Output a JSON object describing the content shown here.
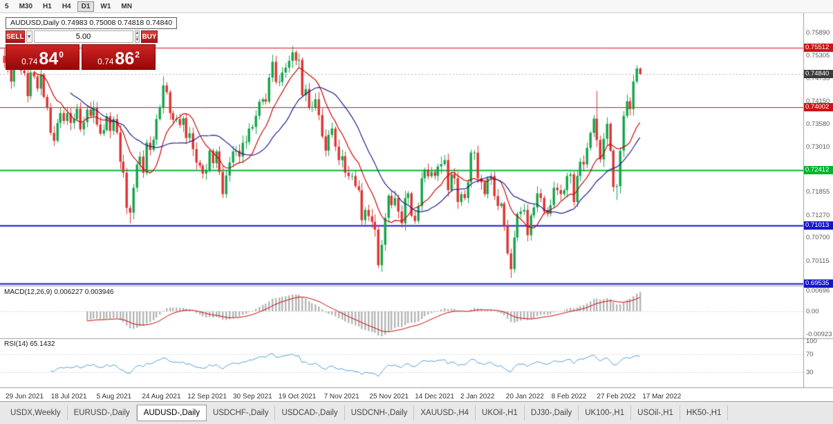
{
  "toolbar": {
    "timeframes": [
      "5",
      "M30",
      "H1",
      "H4",
      "D1",
      "W1",
      "MN"
    ],
    "active": "D1"
  },
  "chart": {
    "symbol": "AUDUSD,Daily",
    "title": "AUDUSD,Daily  0.74983 0.75008 0.74818 0.74840",
    "ohlc": {
      "open": "0.74983",
      "high": "0.75008",
      "low": "0.74818",
      "close": "0.74840"
    }
  },
  "trade_panel": {
    "sell_label": "SELL",
    "buy_label": "BUY",
    "volume": "5.00",
    "sell_price": {
      "prefix": "0.74",
      "big": "84",
      "sup": "0"
    },
    "buy_price": {
      "prefix": "0.74",
      "big": "86",
      "sup": "2"
    }
  },
  "price_axis": {
    "ticks": [
      "0.75890",
      "0.75305",
      "0.74735",
      "0.74150",
      "0.73580",
      "0.73010",
      "0.71855",
      "0.71270",
      "0.70700",
      "0.70115"
    ],
    "levels": [
      {
        "value": "0.75512",
        "price": 0.75512,
        "color": "#cc1414",
        "width": 1
      },
      {
        "value": "0.74002",
        "price": 0.74002,
        "color": "#cc1414",
        "width": 1
      },
      {
        "value": "0.72412",
        "price": 0.72412,
        "color": "#00b32c",
        "width": 2
      },
      {
        "value": "0.71013",
        "price": 0.71013,
        "color": "#1515cd",
        "width": 2
      },
      {
        "value": "0.69535",
        "price": 0.69535,
        "color": "#1515cd",
        "width": 2
      }
    ],
    "current": {
      "value": "0.74840",
      "price": 0.7484,
      "bg": "#3c3c3c"
    }
  },
  "indicators": {
    "macd": {
      "label": "MACD(12,26,9) 0.006227 0.003946",
      "params": [
        12,
        26,
        9
      ],
      "values": {
        "main": "0.006227",
        "signal": "0.003946"
      },
      "scale": [
        "0.00696",
        "0.00",
        "-0.00923"
      ]
    },
    "rsi": {
      "label": "RSI(14) 65.1432",
      "period": 14,
      "value": "65.1432",
      "levels": [
        70,
        30
      ],
      "scale": [
        "100",
        "70",
        "30"
      ]
    }
  },
  "x_axis": {
    "labels": [
      "29 Jun 2021",
      "18 Jul 2021",
      "5 Aug 2021",
      "24 Aug 2021",
      "12 Sep 2021",
      "30 Sep 2021",
      "19 Oct 2021",
      "7 Nov 2021",
      "25 Nov 2021",
      "14 Dec 2021",
      "2 Jan 2022",
      "20 Jan 2022",
      "8 Feb 2022",
      "27 Feb 2022",
      "17 Mar 2022"
    ]
  },
  "tabs": {
    "items": [
      "USDX,Weekly",
      "EURUSD-,Daily",
      "AUDUSD-,Daily",
      "USDCHF-,Daily",
      "USDCAD-,Daily",
      "USDCNH-,Daily",
      "XAUUSD-,H4",
      "UKOil-,H1",
      "DJ30-,Daily",
      "UK100-,H1",
      "USOil-,H1",
      "HK50-,H1"
    ],
    "active_index": 2
  },
  "chart_data": {
    "type": "candlestick",
    "symbol": "AUDUSD",
    "timeframe": "Daily",
    "first_open": 0.753,
    "closes": [
      0.7512,
      0.7497,
      0.7465,
      0.7527,
      0.7525,
      0.7493,
      0.7486,
      0.7428,
      0.7488,
      0.7478,
      0.7447,
      0.7483,
      0.7426,
      0.74,
      0.7335,
      0.7315,
      0.736,
      0.7385,
      0.7365,
      0.7385,
      0.736,
      0.737,
      0.7396,
      0.7344,
      0.7362,
      0.7394,
      0.7378,
      0.74,
      0.7356,
      0.7333,
      0.7342,
      0.7377,
      0.734,
      0.737,
      0.7336,
      0.7262,
      0.7234,
      0.7145,
      0.7133,
      0.7196,
      0.7255,
      0.7275,
      0.7234,
      0.731,
      0.7292,
      0.7318,
      0.737,
      0.74,
      0.7455,
      0.7438,
      0.7385,
      0.7368,
      0.737,
      0.7355,
      0.7372,
      0.7322,
      0.7334,
      0.7294,
      0.726,
      0.7252,
      0.7232,
      0.724,
      0.729,
      0.7258,
      0.7288,
      0.7236,
      0.718,
      0.7227,
      0.726,
      0.7288,
      0.729,
      0.7275,
      0.731,
      0.7312,
      0.7346,
      0.735,
      0.7378,
      0.7414,
      0.742,
      0.7414,
      0.7475,
      0.7515,
      0.7464,
      0.7464,
      0.7488,
      0.75,
      0.7517,
      0.7539,
      0.7518,
      0.752,
      0.743,
      0.7446,
      0.74,
      0.74,
      0.742,
      0.738,
      0.7326,
      0.729,
      0.733,
      0.7346,
      0.73,
      0.7266,
      0.7276,
      0.7234,
      0.7226,
      0.7226,
      0.72,
      0.719,
      0.7114,
      0.714,
      0.7124,
      0.711,
      0.709,
      0.7,
      0.7052,
      0.712,
      0.7176,
      0.7152,
      0.717,
      0.7136,
      0.7106,
      0.717,
      0.7182,
      0.7125,
      0.7112,
      0.715,
      0.722,
      0.7242,
      0.7225,
      0.7236,
      0.7226,
      0.725,
      0.7256,
      0.7266,
      0.719,
      0.723,
      0.722,
      0.716,
      0.718,
      0.717,
      0.721,
      0.7285,
      0.7285,
      0.722,
      0.721,
      0.718,
      0.722,
      0.7226,
      0.7175,
      0.715,
      0.7156,
      0.71,
      0.703,
      0.699,
      0.707,
      0.713,
      0.7136,
      0.714,
      0.7076,
      0.7126,
      0.7146,
      0.7182,
      0.717,
      0.7136,
      0.713,
      0.7152,
      0.7196,
      0.719,
      0.718,
      0.719,
      0.7226,
      0.723,
      0.716,
      0.7226,
      0.7262,
      0.7255,
      0.7297,
      0.7335,
      0.7371,
      0.7317,
      0.7268,
      0.732,
      0.7358,
      0.729,
      0.7198,
      0.72,
      0.729,
      0.7378,
      0.7415,
      0.7395,
      0.7465,
      0.7498,
      0.7484
    ],
    "wick_overrides": {
      "38": {
        "l": 0.7106
      },
      "48": {
        "h": 0.7478
      },
      "66": {
        "l": 0.717
      },
      "87": {
        "h": 0.7555
      },
      "113": {
        "l": 0.6993
      },
      "153": {
        "l": 0.6968
      },
      "179": {
        "h": 0.7441
      },
      "185": {
        "l": 0.7165
      },
      "191": {
        "h": 0.7506
      },
      "192": {
        "h": 0.75008,
        "l": 0.74818
      }
    },
    "ma_fast": {
      "period": 10,
      "color": "#cc0000"
    },
    "ma_slow": {
      "period": 21,
      "color": "#1a1a8c"
    },
    "colors": {
      "up": "#12a44a",
      "down": "#e03131",
      "macd_hist": "#b4b4b4",
      "macd_signal": "#cc0000",
      "rsi_line": "#4f9fd8"
    }
  }
}
